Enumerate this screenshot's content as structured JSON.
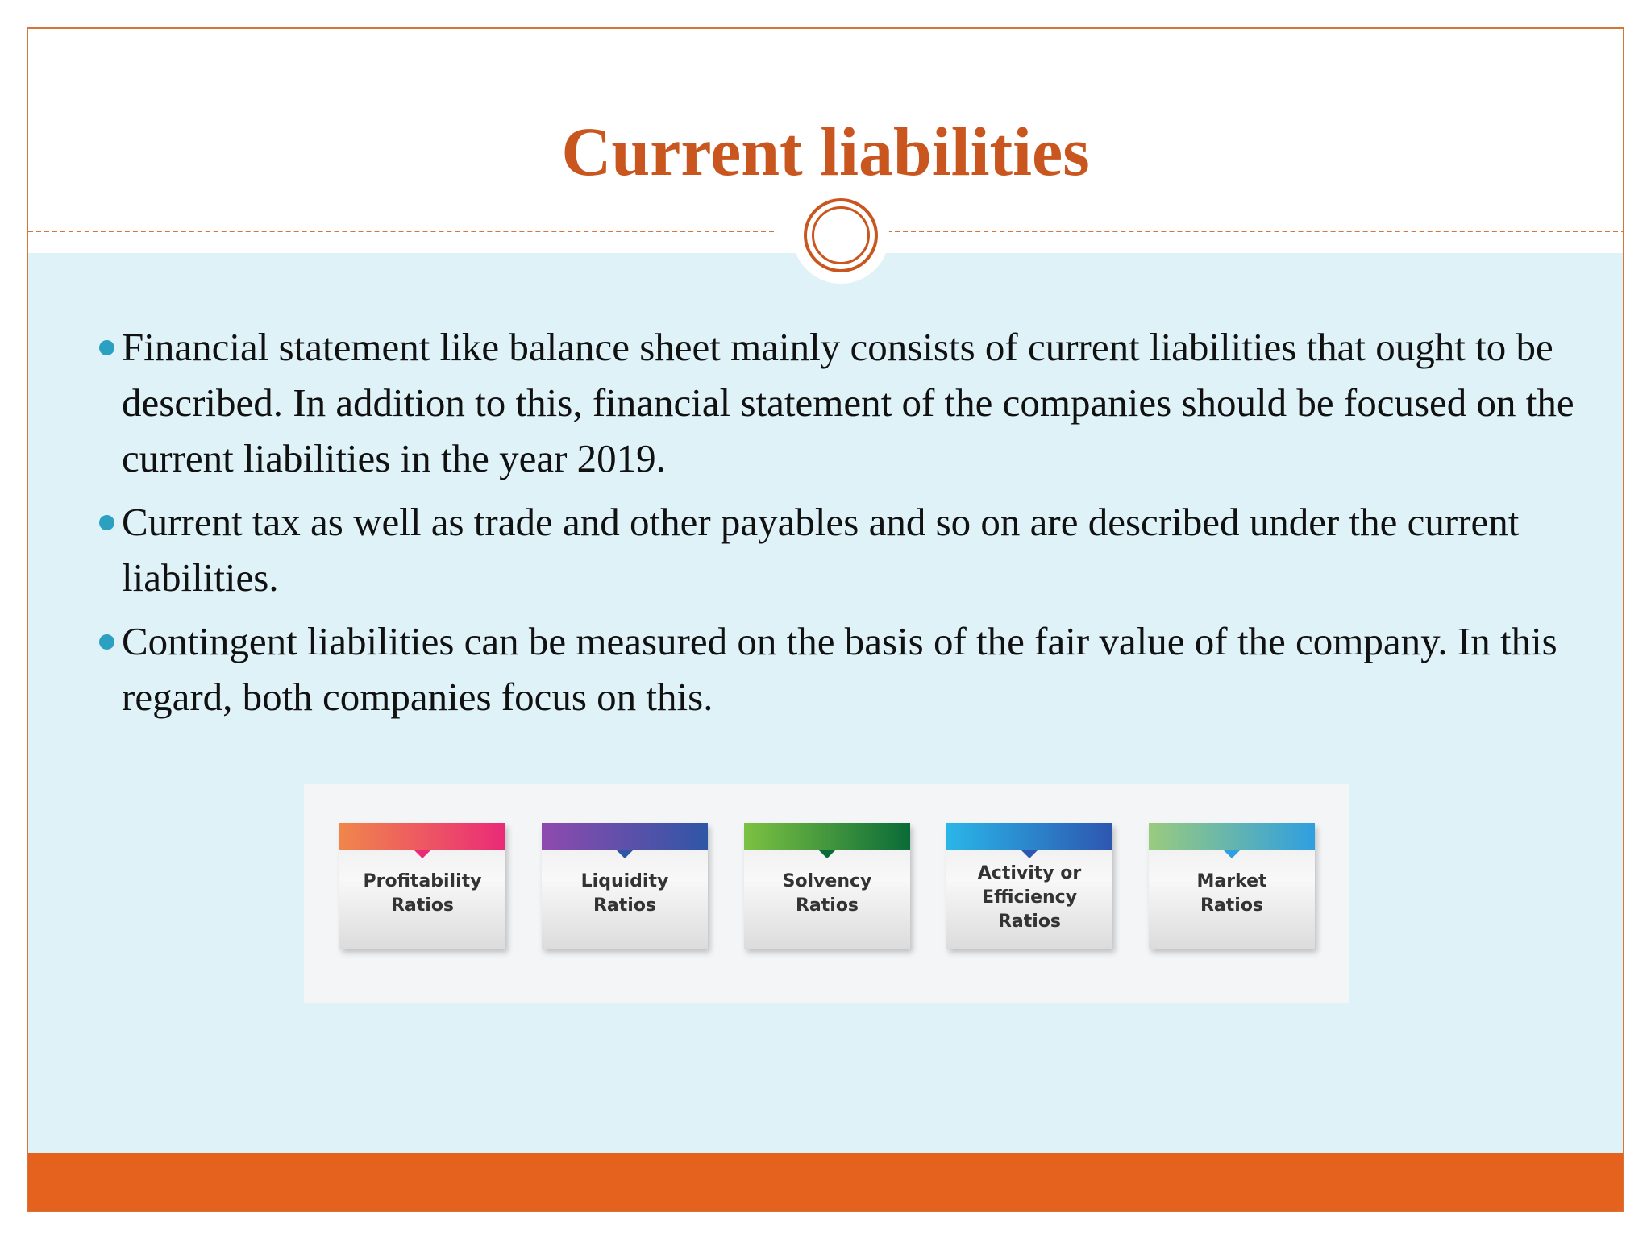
{
  "slide": {
    "title": "Current liabilities",
    "colors": {
      "accent": "#c9561e",
      "footer": "#e4621d",
      "content_bg": "#def2f8",
      "bullet": "#2ba0c1"
    },
    "bullets": [
      "Financial statement like balance sheet mainly consists of current liabilities that ought to be described. In addition to this, financial statement of the companies should be focused on the current liabilities in the year 2019.",
      "Current tax as well as trade and other payables and so on are described under the current liabilities.",
      "Contingent liabilities can be measured on the basis of the fair value of the company. In this regard, both companies focus on this."
    ],
    "ratios": [
      {
        "label": "Profitability\nRatios",
        "gradient": [
          "#f0864b",
          "#ea2a78"
        ]
      },
      {
        "label": "Liquidity\nRatios",
        "gradient": [
          "#8e4aae",
          "#2f56a6"
        ]
      },
      {
        "label": "Solvency\nRatios",
        "gradient": [
          "#7cc242",
          "#0a6b38"
        ]
      },
      {
        "label": "Activity or\nEfficiency\nRatios",
        "gradient": [
          "#2ab6e8",
          "#2d56b0"
        ]
      },
      {
        "label": "Market\nRatios",
        "gradient": [
          "#9acb7e",
          "#2f9fe0"
        ]
      }
    ]
  }
}
